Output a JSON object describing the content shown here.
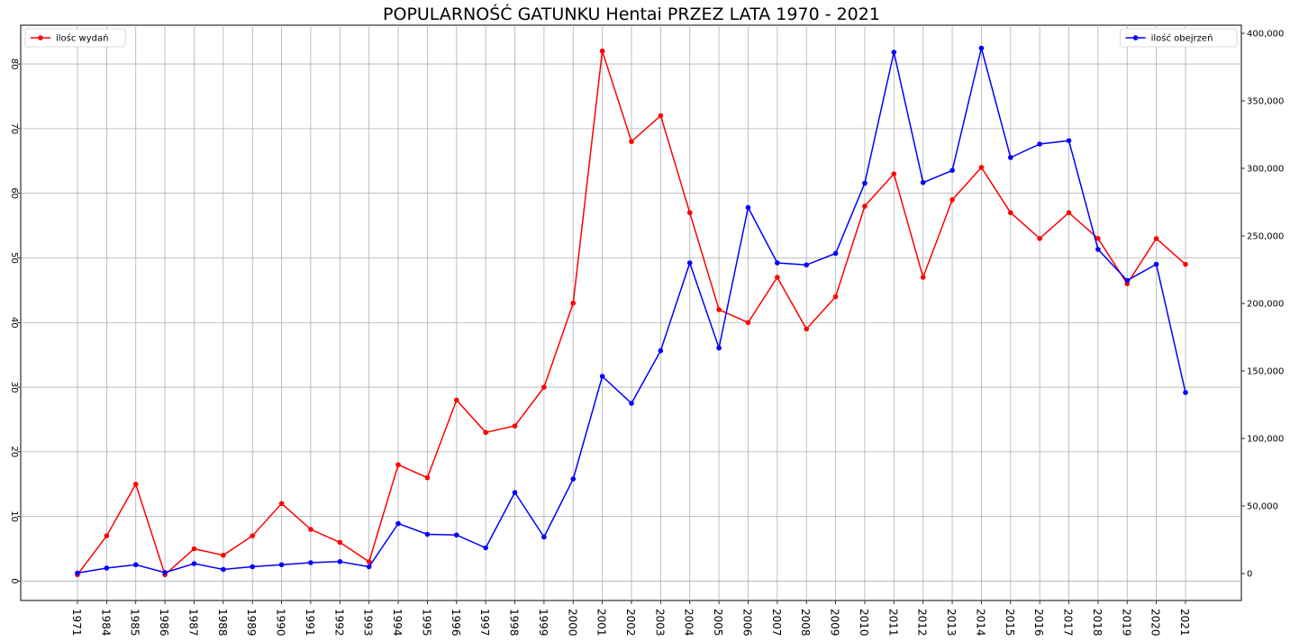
{
  "chart_data": {
    "type": "line",
    "title": "POPULARNOŚĆ GATUNKU Hentai PRZEZ LATA 1970 - 2021",
    "xlabel": "",
    "ylabel": "",
    "y2label": "",
    "categories": [
      "1971",
      "1984",
      "1985",
      "1986",
      "1987",
      "1988",
      "1989",
      "1990",
      "1991",
      "1992",
      "1993",
      "1994",
      "1995",
      "1996",
      "1997",
      "1998",
      "1999",
      "2000",
      "2001",
      "2002",
      "2003",
      "2004",
      "2005",
      "2006",
      "2007",
      "2008",
      "2009",
      "2010",
      "2011",
      "2012",
      "2013",
      "2014",
      "2015",
      "2016",
      "2017",
      "2018",
      "2019",
      "2020",
      "2021"
    ],
    "ylim": [
      -3,
      86
    ],
    "y2lim": [
      -20000,
      406000
    ],
    "yticks": [
      0,
      10,
      20,
      30,
      40,
      50,
      60,
      70,
      80
    ],
    "y2ticks": [
      0,
      50000,
      100000,
      150000,
      200000,
      250000,
      300000,
      350000,
      400000
    ],
    "y2ticklabels": [
      "0",
      "50,000",
      "100,000",
      "150,000",
      "200,000",
      "250,000",
      "300,000",
      "350,000",
      "400,000"
    ],
    "grid": true,
    "series": [
      {
        "name": "ilośc wydań",
        "axis": "left",
        "color": "#ff0000",
        "legend_position": "top-left",
        "values": [
          1,
          7,
          15,
          1,
          5,
          4,
          7,
          12,
          8,
          6,
          3,
          18,
          16,
          28,
          23,
          24,
          30,
          43,
          82,
          68,
          72,
          57,
          42,
          40,
          47,
          39,
          44,
          58,
          63,
          47,
          59,
          64,
          57,
          53,
          57,
          53,
          46,
          53,
          49
        ]
      },
      {
        "name": "ilość obejrzeń",
        "axis": "right",
        "color": "#0000ff",
        "legend_position": "top-right",
        "values": [
          300,
          4000,
          6500,
          700,
          7300,
          3000,
          5000,
          6500,
          8000,
          8800,
          5000,
          37000,
          29000,
          28500,
          19000,
          60000,
          27000,
          70000,
          146000,
          126000,
          165000,
          230000,
          167000,
          271000,
          230000,
          228500,
          237000,
          289000,
          386000,
          289500,
          298500,
          389000,
          308000,
          318000,
          320500,
          240000,
          217000,
          229000,
          134000
        ]
      }
    ]
  }
}
